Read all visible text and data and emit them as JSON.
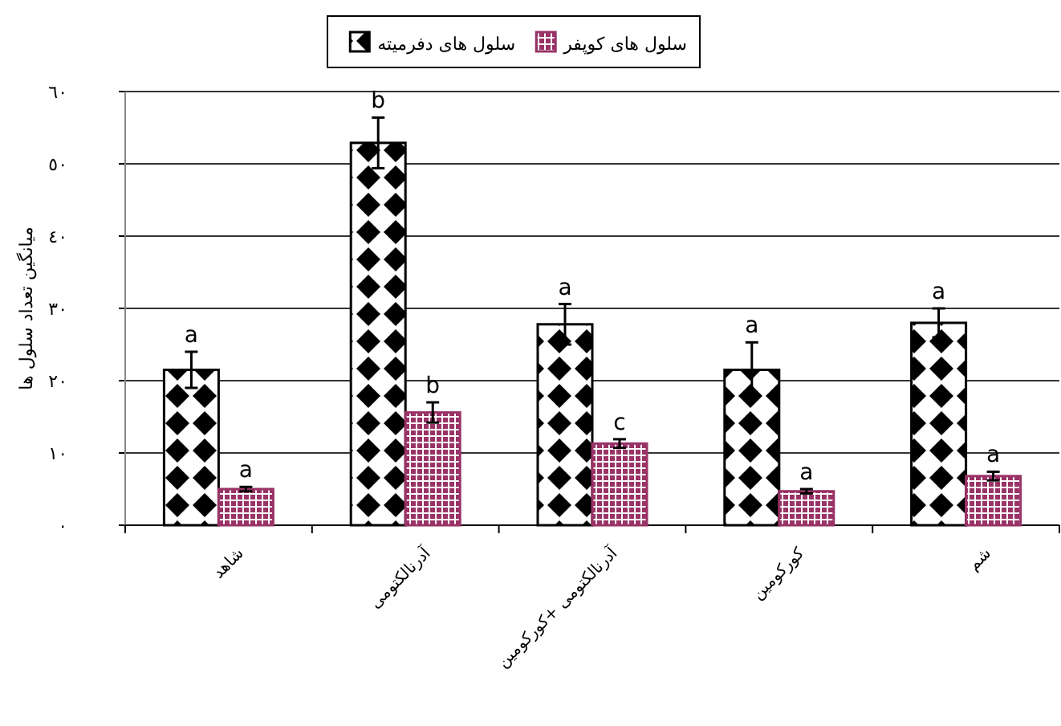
{
  "chart_data": {
    "type": "bar",
    "ylabel": "میانگین تعداد سلول ها",
    "categories": [
      "شاهد",
      "آدرنالکتومی",
      "آدرنالکتومی +کورکومین",
      "کورکومین",
      "شم"
    ],
    "series": [
      {
        "name": "سلول های دفرمیته",
        "color": "#000000",
        "values": [
          21.5,
          52.9,
          27.8,
          21.5,
          28.0
        ],
        "errors": [
          2.5,
          3.5,
          2.8,
          3.8,
          2.0
        ],
        "value_labels": [
          "a",
          "b",
          "a",
          "a",
          "a"
        ]
      },
      {
        "name": "سلول های کوپفر",
        "color": "#993366",
        "values": [
          5.0,
          15.6,
          11.3,
          4.7,
          6.8
        ],
        "errors": [
          0.3,
          1.4,
          0.6,
          0.3,
          0.6
        ],
        "value_labels": [
          "a",
          "b",
          "c",
          "a",
          "a"
        ]
      }
    ],
    "ylim": [
      0,
      60
    ],
    "yticks": [
      {
        "value": 0,
        "label": "٠"
      },
      {
        "value": 10,
        "label": "١٠"
      },
      {
        "value": 20,
        "label": "٢٠"
      },
      {
        "value": 30,
        "label": "٣٠"
      },
      {
        "value": 40,
        "label": "٤٠"
      },
      {
        "value": 50,
        "label": "٥٠"
      },
      {
        "value": 60,
        "label": "٦٠"
      }
    ],
    "grid": "y",
    "legend": "top"
  }
}
